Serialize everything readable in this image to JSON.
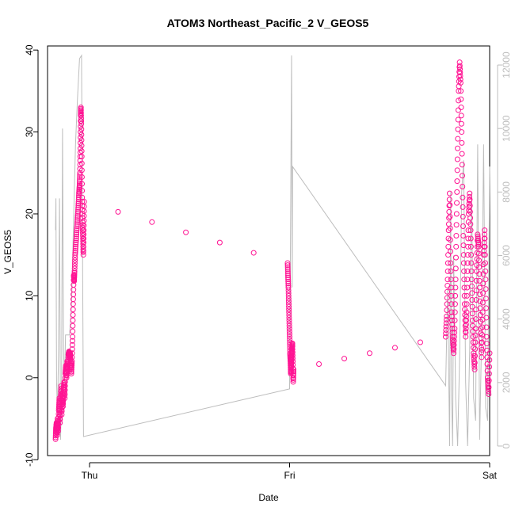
{
  "chart_data": {
    "type": "scatter",
    "title": "ATOM3 Northeast_Pacific_2 V_GEOS5",
    "xlabel": "Date",
    "ylabel": "V_GEOS5",
    "x_ticks": [
      "Thu",
      "Fri",
      "Sat"
    ],
    "y_ticks": [
      "-10",
      "0",
      "10",
      "20",
      "30",
      "40"
    ],
    "y_ticks_values": [
      -10,
      0,
      10,
      20,
      30,
      40
    ],
    "y_right_ticks": [
      "0",
      "2000",
      "4000",
      "6000",
      "8000",
      "10000",
      "12000"
    ],
    "y_right_ticks_values": [
      0,
      2000,
      4000,
      6000,
      8000,
      10000,
      12000
    ],
    "xlim": [
      -0.21,
      2.0
    ],
    "ylim": [
      -9.5,
      40.5
    ],
    "y_right_lim": [
      -300,
      12600
    ],
    "point_color": "#ff1493",
    "line_color": "#bdbdbd",
    "series": [
      {
        "points": [
          [
            -0.17,
            -7.5
          ],
          [
            -0.168,
            -6.2
          ],
          [
            -0.165,
            -5.5
          ],
          [
            -0.162,
            -7.0
          ],
          [
            -0.16,
            -5.0
          ],
          [
            -0.157,
            -6.5
          ],
          [
            -0.154,
            -4.0
          ],
          [
            -0.151,
            -2.5
          ],
          [
            -0.148,
            -5.5
          ],
          [
            -0.145,
            -3.0
          ],
          [
            -0.142,
            -1.0
          ],
          [
            -0.139,
            -4.5
          ],
          [
            -0.136,
            -2.0
          ],
          [
            -0.133,
            -3.5
          ],
          [
            -0.13,
            -1.5
          ],
          [
            -0.127,
            -0.5
          ],
          [
            -0.124,
            -2.5
          ],
          [
            -0.121,
            0.5
          ],
          [
            -0.118,
            1.5
          ],
          [
            -0.115,
            0.0
          ],
          [
            -0.112,
            2.0
          ],
          [
            -0.109,
            1.0
          ],
          [
            -0.106,
            2.8
          ],
          [
            -0.103,
            3.2
          ],
          [
            -0.1,
            2.5
          ],
          [
            -0.097,
            3.0
          ],
          [
            -0.094,
            1.8
          ],
          [
            -0.091,
            0.5
          ],
          [
            -0.088,
            2.0
          ],
          [
            -0.085,
            5.0
          ],
          [
            -0.082,
            9.0
          ],
          [
            -0.079,
            12.5
          ],
          [
            -0.077,
            11.8
          ],
          [
            -0.075,
            13.0
          ],
          [
            -0.072,
            15.0
          ],
          [
            -0.068,
            16.5
          ],
          [
            -0.064,
            18.0
          ],
          [
            -0.06,
            19.5
          ],
          [
            -0.056,
            21.0
          ],
          [
            -0.053,
            22.5
          ],
          [
            -0.05,
            23.5
          ],
          [
            -0.048,
            25.0
          ],
          [
            -0.046,
            28.0
          ],
          [
            -0.044,
            32.0
          ],
          [
            -0.043,
            33.0
          ],
          [
            -0.041,
            31.0
          ],
          [
            -0.039,
            27.0
          ],
          [
            -0.037,
            22.0
          ],
          [
            -0.035,
            19.0
          ],
          [
            -0.033,
            17.0
          ],
          [
            -0.031,
            15.0
          ],
          [
            -0.029,
            18.0
          ],
          [
            -0.027,
            21.5
          ],
          [
            0.99,
            14.0
          ],
          [
            0.992,
            12.5
          ],
          [
            0.994,
            11.0
          ],
          [
            0.996,
            9.0
          ],
          [
            0.998,
            7.0
          ],
          [
            1.0,
            5.0
          ],
          [
            1.002,
            3.0
          ],
          [
            1.004,
            2.0
          ],
          [
            1.006,
            0.5
          ],
          [
            1.008,
            1.5
          ],
          [
            1.01,
            2.5
          ],
          [
            1.012,
            3.5
          ],
          [
            1.014,
            4.2
          ],
          [
            1.016,
            2.0
          ],
          [
            1.018,
            -0.5
          ],
          [
            1.02,
            1.0
          ],
          [
            1.78,
            5.0
          ],
          [
            1.785,
            7.5
          ],
          [
            1.79,
            12.0
          ],
          [
            1.795,
            18.0
          ],
          [
            1.8,
            22.5
          ],
          [
            1.805,
            14.0
          ],
          [
            1.81,
            8.0
          ],
          [
            1.815,
            5.0
          ],
          [
            1.82,
            3.0
          ],
          [
            1.825,
            6.0
          ],
          [
            1.83,
            12.0
          ],
          [
            1.835,
            20.0
          ],
          [
            1.84,
            28.0
          ],
          [
            1.845,
            35.0
          ],
          [
            1.85,
            38.5
          ],
          [
            1.855,
            36.0
          ],
          [
            1.86,
            30.0
          ],
          [
            1.865,
            22.0
          ],
          [
            1.87,
            15.0
          ],
          [
            1.875,
            9.0
          ],
          [
            1.88,
            5.0
          ],
          [
            1.885,
            8.0
          ],
          [
            1.89,
            14.0
          ],
          [
            1.895,
            20.0
          ],
          [
            1.9,
            22.5
          ],
          [
            1.905,
            18.0
          ],
          [
            1.91,
            12.0
          ],
          [
            1.915,
            7.0
          ],
          [
            1.92,
            3.0
          ],
          [
            1.925,
            1.0
          ],
          [
            1.93,
            6.0
          ],
          [
            1.935,
            13.0
          ],
          [
            1.94,
            17.5
          ],
          [
            1.945,
            16.0
          ],
          [
            1.95,
            11.0
          ],
          [
            1.955,
            6.0
          ],
          [
            1.96,
            2.5
          ],
          [
            1.965,
            8.0
          ],
          [
            1.97,
            15.0
          ],
          [
            1.975,
            18.0
          ],
          [
            1.98,
            12.0
          ],
          [
            1.985,
            5.0
          ],
          [
            1.99,
            0.0
          ],
          [
            1.995,
            -2.0
          ],
          [
            2.0,
            3.0
          ]
        ]
      },
      {
        "name": "",
        "axis": "right",
        "line": [
          [
            -0.17,
            6800
          ],
          [
            -0.168,
            7800
          ],
          [
            -0.165,
            2000
          ],
          [
            -0.16,
            1000
          ],
          [
            -0.155,
            3000
          ],
          [
            -0.15,
            7800
          ],
          [
            -0.145,
            200
          ],
          [
            -0.14,
            1500
          ],
          [
            -0.135,
            10000
          ],
          [
            -0.13,
            3000
          ],
          [
            -0.125,
            2000
          ],
          [
            -0.12,
            3500
          ],
          [
            -0.1,
            3500
          ],
          [
            -0.09,
            4500
          ],
          [
            -0.08,
            7000
          ],
          [
            -0.07,
            9500
          ],
          [
            -0.06,
            11000
          ],
          [
            -0.05,
            12200
          ],
          [
            -0.04,
            12300
          ],
          [
            -0.03,
            300
          ],
          [
            1.0,
            1800
          ],
          [
            1.01,
            12300
          ],
          [
            1.013,
            5000
          ],
          [
            1.015,
            8800
          ],
          [
            1.78,
            1900
          ],
          [
            1.79,
            5000
          ],
          [
            1.8,
            0
          ],
          [
            1.805,
            8000
          ],
          [
            1.81,
            1500
          ],
          [
            1.815,
            0
          ],
          [
            1.82,
            6000
          ],
          [
            1.83,
            1500
          ],
          [
            1.84,
            0
          ],
          [
            1.85,
            2800
          ],
          [
            1.86,
            8000
          ],
          [
            1.87,
            9000
          ],
          [
            1.88,
            2000
          ],
          [
            1.89,
            0
          ],
          [
            1.9,
            3000
          ],
          [
            1.91,
            8000
          ],
          [
            1.92,
            1500
          ],
          [
            1.93,
            800
          ],
          [
            1.94,
            9500
          ],
          [
            1.95,
            200
          ],
          [
            1.96,
            3500
          ],
          [
            1.97,
            9500
          ],
          [
            1.98,
            1200
          ],
          [
            1.99,
            800
          ],
          [
            2.0,
            8800
          ]
        ]
      }
    ]
  }
}
